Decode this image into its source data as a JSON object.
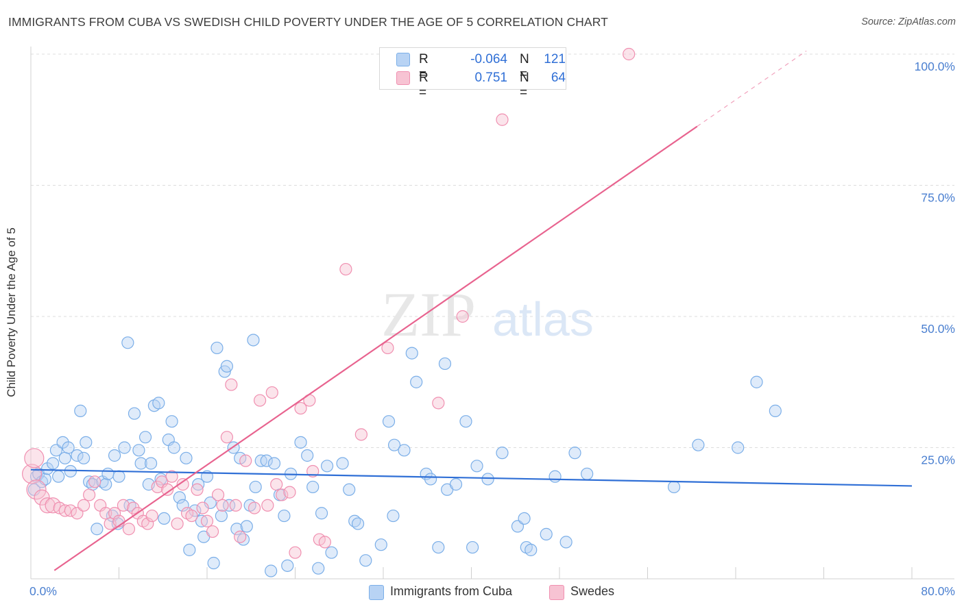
{
  "title": "IMMIGRANTS FROM CUBA VS SWEDISH CHILD POVERTY UNDER THE AGE OF 5 CORRELATION CHART",
  "source": "Source: ZipAtlas.com",
  "watermark": {
    "zip": "ZIP",
    "atlas": "atlas"
  },
  "legend": {
    "rows": [
      {
        "r_label": "R =",
        "r_value": "-0.064",
        "n_label": "N =",
        "n_value": "121"
      },
      {
        "r_label": "R =",
        "r_value": "0.751",
        "n_label": "N =",
        "n_value": "64"
      }
    ]
  },
  "colors": {
    "blue_fill": "#b8d3f4",
    "blue_stroke": "#7aaee8",
    "blue_line": "#2f6fd6",
    "pink_fill": "#f7c3d3",
    "pink_stroke": "#f08fb0",
    "pink_line": "#e8638f",
    "axis_text": "#4a7fd0"
  },
  "chart_data": {
    "type": "scatter",
    "title": "IMMIGRANTS FROM CUBA VS SWEDISH CHILD POVERTY UNDER THE AGE OF 5 CORRELATION CHART",
    "xlabel": "",
    "ylabel": "Child Poverty Under the Age of 5",
    "xlim": [
      0,
      80
    ],
    "ylim": [
      0,
      100
    ],
    "x_tick_labels": [
      "0.0%",
      "80.0%"
    ],
    "y_tick_labels": [
      "100.0%",
      "75.0%",
      "50.0%",
      "25.0%"
    ],
    "y_ticks": [
      100,
      75,
      50,
      25
    ],
    "x_minor_ticks": [
      8,
      16,
      24,
      32,
      40,
      48,
      56,
      64,
      72,
      80
    ],
    "series": [
      {
        "name": "Immigrants from Cuba",
        "color": "#7aaee8",
        "trend": {
          "x0": 0,
          "y0": 20.8,
          "x1": 80,
          "y1": 17.7
        },
        "points": [
          [
            0.3,
            17
          ],
          [
            0.5,
            19.5
          ],
          [
            0.7,
            20
          ],
          [
            1.0,
            18.5
          ],
          [
            1.3,
            19
          ],
          [
            1.5,
            21
          ],
          [
            2.0,
            22
          ],
          [
            2.3,
            24.5
          ],
          [
            2.5,
            19.5
          ],
          [
            2.9,
            26
          ],
          [
            3.1,
            23
          ],
          [
            3.4,
            25
          ],
          [
            3.6,
            20.5
          ],
          [
            4.2,
            23.5
          ],
          [
            4.5,
            32
          ],
          [
            4.8,
            23
          ],
          [
            5.0,
            26
          ],
          [
            5.3,
            18.5
          ],
          [
            5.6,
            18
          ],
          [
            6.0,
            9.5
          ],
          [
            6.5,
            18.5
          ],
          [
            6.8,
            18
          ],
          [
            7.0,
            20
          ],
          [
            7.4,
            12
          ],
          [
            7.6,
            23.5
          ],
          [
            7.9,
            10.5
          ],
          [
            8.0,
            19.5
          ],
          [
            8.5,
            25
          ],
          [
            8.8,
            45
          ],
          [
            9.0,
            14
          ],
          [
            9.4,
            31.5
          ],
          [
            9.8,
            24.5
          ],
          [
            10.0,
            22
          ],
          [
            10.4,
            27
          ],
          [
            10.7,
            18
          ],
          [
            10.9,
            22
          ],
          [
            11.2,
            33
          ],
          [
            11.6,
            33.5
          ],
          [
            11.8,
            19
          ],
          [
            12.1,
            11.5
          ],
          [
            12.5,
            26.5
          ],
          [
            12.8,
            30
          ],
          [
            13.0,
            25
          ],
          [
            13.5,
            15.5
          ],
          [
            13.8,
            14
          ],
          [
            14.1,
            23
          ],
          [
            14.4,
            5.5
          ],
          [
            14.9,
            13
          ],
          [
            15.2,
            18
          ],
          [
            15.5,
            11
          ],
          [
            15.7,
            8
          ],
          [
            16.0,
            19.5
          ],
          [
            16.3,
            14.5
          ],
          [
            16.6,
            3
          ],
          [
            16.9,
            44
          ],
          [
            17.3,
            12
          ],
          [
            17.6,
            39.5
          ],
          [
            17.8,
            40.5
          ],
          [
            18.0,
            14
          ],
          [
            18.4,
            25
          ],
          [
            18.7,
            9.5
          ],
          [
            19.0,
            23
          ],
          [
            19.3,
            7.5
          ],
          [
            19.6,
            10
          ],
          [
            19.9,
            14
          ],
          [
            20.2,
            45.5
          ],
          [
            20.4,
            17.5
          ],
          [
            20.9,
            22.5
          ],
          [
            21.4,
            22.5
          ],
          [
            21.8,
            1.5
          ],
          [
            22.1,
            22
          ],
          [
            22.6,
            16
          ],
          [
            23.0,
            12
          ],
          [
            23.3,
            2.5
          ],
          [
            23.6,
            20
          ],
          [
            24.5,
            26
          ],
          [
            25.1,
            23.5
          ],
          [
            25.6,
            17.5
          ],
          [
            26.1,
            2
          ],
          [
            26.4,
            12.5
          ],
          [
            26.9,
            21.5
          ],
          [
            27.3,
            5
          ],
          [
            28.3,
            22
          ],
          [
            28.9,
            17
          ],
          [
            29.4,
            11
          ],
          [
            29.7,
            10.5
          ],
          [
            30.4,
            3.5
          ],
          [
            31.8,
            6.5
          ],
          [
            32.5,
            30
          ],
          [
            32.9,
            12
          ],
          [
            33.0,
            25.5
          ],
          [
            33.9,
            24.5
          ],
          [
            34.6,
            43
          ],
          [
            35.0,
            37.5
          ],
          [
            35.9,
            20
          ],
          [
            36.3,
            19
          ],
          [
            37.0,
            6
          ],
          [
            37.6,
            41
          ],
          [
            37.8,
            17
          ],
          [
            38.6,
            18
          ],
          [
            39.5,
            30
          ],
          [
            40.1,
            6
          ],
          [
            40.5,
            21.5
          ],
          [
            41.5,
            19
          ],
          [
            42.8,
            24
          ],
          [
            44.2,
            10
          ],
          [
            44.8,
            11.5
          ],
          [
            45.0,
            6
          ],
          [
            45.4,
            5.5
          ],
          [
            46.8,
            8.5
          ],
          [
            47.6,
            19.5
          ],
          [
            48.6,
            7
          ],
          [
            49.4,
            24
          ],
          [
            50.5,
            20
          ],
          [
            58.4,
            17.5
          ],
          [
            60.6,
            25.5
          ],
          [
            64.2,
            25
          ],
          [
            65.9,
            37.5
          ],
          [
            67.6,
            32
          ]
        ]
      },
      {
        "name": "Swedes",
        "color": "#f08fb0",
        "trend": {
          "x0": 0,
          "y0": -1.5,
          "x1": 80,
          "y1": 114.5,
          "solid_until_x": 60.5
        },
        "points": [
          [
            0.1,
            20
          ],
          [
            0.3,
            23
          ],
          [
            0.5,
            17
          ],
          [
            1.0,
            15.5
          ],
          [
            1.5,
            14
          ],
          [
            2.0,
            14
          ],
          [
            2.6,
            13.5
          ],
          [
            3.1,
            13
          ],
          [
            3.6,
            13
          ],
          [
            4.2,
            12.5
          ],
          [
            4.8,
            14
          ],
          [
            5.3,
            16
          ],
          [
            5.8,
            18.5
          ],
          [
            6.3,
            14
          ],
          [
            6.8,
            12.5
          ],
          [
            7.2,
            10.5
          ],
          [
            7.6,
            12.5
          ],
          [
            8.0,
            11
          ],
          [
            8.4,
            14
          ],
          [
            8.9,
            9.5
          ],
          [
            9.3,
            13.5
          ],
          [
            9.7,
            12.5
          ],
          [
            10.2,
            11
          ],
          [
            10.6,
            10.5
          ],
          [
            11.0,
            12
          ],
          [
            11.5,
            17.5
          ],
          [
            11.9,
            18.5
          ],
          [
            12.4,
            17
          ],
          [
            12.8,
            19.5
          ],
          [
            13.3,
            10.5
          ],
          [
            13.8,
            18
          ],
          [
            14.2,
            12.5
          ],
          [
            14.6,
            12
          ],
          [
            15.1,
            17
          ],
          [
            15.6,
            13.5
          ],
          [
            16.0,
            11
          ],
          [
            16.5,
            9
          ],
          [
            17.0,
            16
          ],
          [
            17.4,
            14
          ],
          [
            17.8,
            27
          ],
          [
            18.2,
            37
          ],
          [
            18.6,
            14
          ],
          [
            19.0,
            8
          ],
          [
            19.5,
            22.5
          ],
          [
            20.3,
            13.5
          ],
          [
            20.8,
            34
          ],
          [
            21.5,
            14
          ],
          [
            21.9,
            35.5
          ],
          [
            22.3,
            18
          ],
          [
            22.8,
            16
          ],
          [
            23.5,
            16.5
          ],
          [
            24.0,
            5
          ],
          [
            24.5,
            32.5
          ],
          [
            25.3,
            34
          ],
          [
            25.6,
            20.5
          ],
          [
            26.2,
            7.5
          ],
          [
            26.7,
            7
          ],
          [
            28.6,
            59
          ],
          [
            30.0,
            27.5
          ],
          [
            32.4,
            44
          ],
          [
            37.0,
            33.5
          ],
          [
            39.2,
            50
          ],
          [
            42.8,
            87.5
          ],
          [
            54.3,
            100
          ]
        ]
      }
    ]
  },
  "bottom_legend": {
    "blue_label": "Immigrants from Cuba",
    "pink_label": "Swedes"
  }
}
